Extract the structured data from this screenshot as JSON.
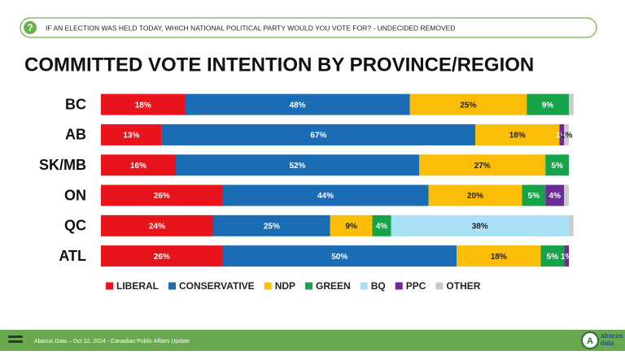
{
  "header": {
    "icon": "?",
    "question": "IF AN ELECTION WAS HELD TODAY, WHICH NATIONAL POLITICAL PARTY WOULD YOU VOTE FOR? - UNDECIDED REMOVED"
  },
  "chart_data": {
    "type": "bar",
    "orientation": "horizontal",
    "stacked": true,
    "title": "COMMITTED VOTE INTENTION BY PROVINCE/REGION",
    "categories": [
      "BC",
      "AB",
      "SK/MB",
      "ON",
      "QC",
      "ATL"
    ],
    "xlim": [
      0,
      100
    ],
    "legend": "bottom",
    "series": [
      {
        "name": "LIBERAL",
        "color": "#e8141b",
        "values": [
          18,
          13,
          16,
          26,
          24,
          26
        ],
        "value_labels": [
          "18%",
          "13%",
          "16%",
          "26%",
          "24%",
          "26%"
        ]
      },
      {
        "name": "CONSERVATIVE",
        "color": "#1a6db5",
        "values": [
          48,
          67,
          52,
          44,
          25,
          50
        ],
        "value_labels": [
          "48%",
          "67%",
          "52%",
          "44%",
          "25%",
          "50%"
        ]
      },
      {
        "name": "NDP",
        "color": "#fbbd08",
        "values": [
          25,
          18,
          27,
          20,
          9,
          18
        ],
        "value_labels": [
          "25%",
          "18%",
          "27%",
          "20%",
          "9%",
          "18%"
        ]
      },
      {
        "name": "GREEN",
        "color": "#17a34a",
        "values": [
          9,
          0,
          5,
          5,
          4,
          5
        ],
        "value_labels": [
          "9%",
          null,
          "5%",
          "5%",
          "4%",
          "5%"
        ]
      },
      {
        "name": "BQ",
        "color": "#a9e1f7",
        "values": [
          0,
          0,
          0,
          0,
          38,
          0
        ],
        "value_labels": [
          null,
          null,
          null,
          null,
          "38%",
          null
        ]
      },
      {
        "name": "PPC",
        "color": "#6a2c91",
        "values": [
          0,
          1,
          0,
          4,
          0,
          1
        ],
        "value_labels": [
          null,
          "1%",
          null,
          "4%",
          null,
          "1%"
        ]
      },
      {
        "name": "OTHER",
        "color": "#cccccc",
        "values": [
          1,
          1,
          0,
          1,
          1,
          0
        ],
        "value_labels": [
          null,
          "1%",
          null,
          null,
          null,
          null
        ]
      }
    ]
  },
  "footer": {
    "source": "Abacus Data – Oct 22, 2024 - Canadian Public Affairs Update",
    "logo_mark": "A",
    "logo": [
      "abacus",
      "data"
    ]
  }
}
